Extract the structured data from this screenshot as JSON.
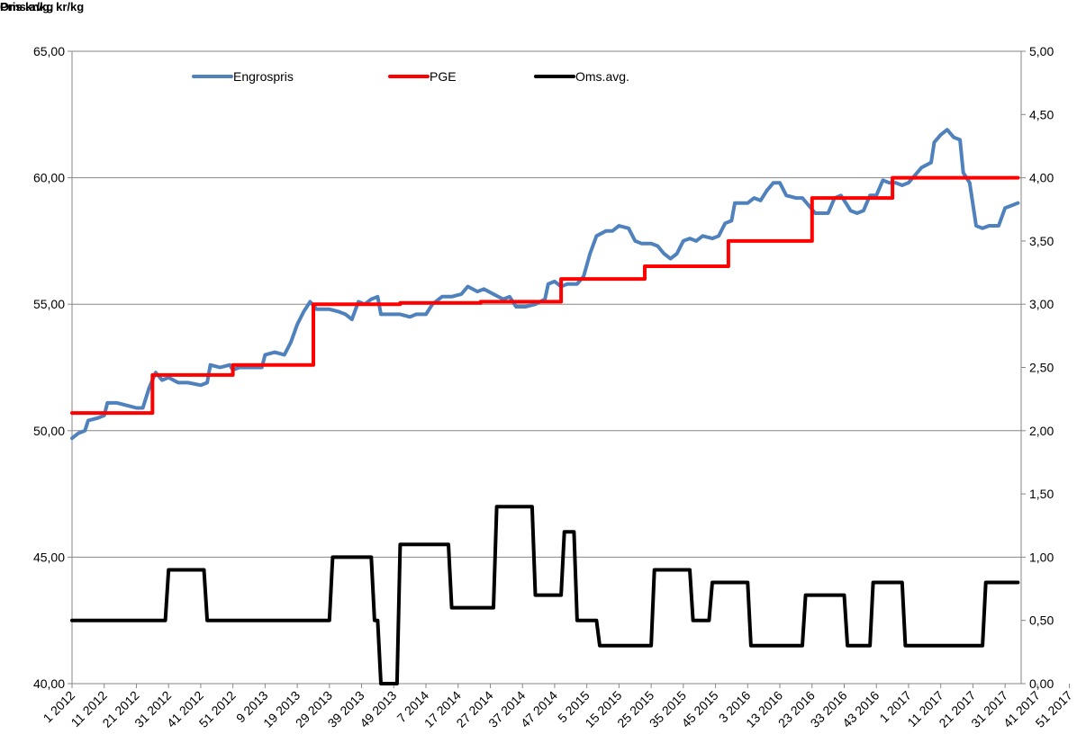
{
  "chart_data": {
    "type": "line",
    "ylabel_left": "Pris kr/kg",
    "ylabel_right": "Oms.avg.  kr/kg",
    "ylim_left": [
      40,
      65
    ],
    "ylim_right": [
      0,
      5
    ],
    "yticks_left": [
      "40,00",
      "45,00",
      "50,00",
      "55,00",
      "60,00",
      "65,00"
    ],
    "yticks_right": [
      "0,00",
      "0,50",
      "1,00",
      "1,50",
      "2,00",
      "2,50",
      "3,00",
      "3,50",
      "4,00",
      "4,50",
      "5,00"
    ],
    "x_tick_labels": [
      "1 2012",
      "11 2012",
      "21 2012",
      "31 2012",
      "41 2012",
      "51 2012",
      "9 2013",
      "19 2013",
      "29 2013",
      "39 2013",
      "49 2013",
      "7 2014",
      "17 2014",
      "27 2014",
      "37 2014",
      "47 2014",
      "5 2015",
      "15 2015",
      "25 2015",
      "35 2015",
      "45 2015",
      "3 2016",
      "13 2016",
      "23 2016",
      "33 2016",
      "43 2016",
      "1 2017",
      "11 2017",
      "21 2017",
      "31 2017",
      "41 2017",
      "51 2017"
    ],
    "grid": true,
    "legend_position": "top",
    "series": [
      {
        "name": "Engrospris",
        "axis": "left",
        "color": "#4F81BD",
        "points": [
          [
            0,
            49.7
          ],
          [
            2,
            49.9
          ],
          [
            4,
            50.0
          ],
          [
            5,
            50.4
          ],
          [
            8,
            50.5
          ],
          [
            10,
            50.6
          ],
          [
            11,
            51.1
          ],
          [
            14,
            51.1
          ],
          [
            17,
            51.0
          ],
          [
            20,
            50.9
          ],
          [
            22,
            50.9
          ],
          [
            24,
            51.7
          ],
          [
            26,
            52.3
          ],
          [
            28,
            52.0
          ],
          [
            30,
            52.1
          ],
          [
            33,
            51.9
          ],
          [
            36,
            51.9
          ],
          [
            40,
            51.8
          ],
          [
            42,
            51.9
          ],
          [
            43,
            52.6
          ],
          [
            46,
            52.5
          ],
          [
            49,
            52.6
          ],
          [
            50,
            52.4
          ],
          [
            52,
            52.5
          ],
          [
            54,
            52.5
          ],
          [
            57,
            52.5
          ],
          [
            59,
            52.5
          ],
          [
            60,
            53.0
          ],
          [
            63,
            53.1
          ],
          [
            66,
            53.0
          ],
          [
            68,
            53.5
          ],
          [
            70,
            54.2
          ],
          [
            72,
            54.7
          ],
          [
            74,
            55.1
          ],
          [
            76,
            54.8
          ],
          [
            80,
            54.8
          ],
          [
            83,
            54.7
          ],
          [
            85,
            54.6
          ],
          [
            87,
            54.4
          ],
          [
            89,
            55.1
          ],
          [
            91,
            55.0
          ],
          [
            93,
            55.2
          ],
          [
            95,
            55.3
          ],
          [
            96,
            54.6
          ],
          [
            99,
            54.6
          ],
          [
            102,
            54.6
          ],
          [
            105,
            54.5
          ],
          [
            107,
            54.6
          ],
          [
            110,
            54.6
          ],
          [
            112,
            55.0
          ],
          [
            115,
            55.3
          ],
          [
            118,
            55.3
          ],
          [
            121,
            55.4
          ],
          [
            123,
            55.7
          ],
          [
            126,
            55.5
          ],
          [
            128,
            55.6
          ],
          [
            131,
            55.4
          ],
          [
            134,
            55.2
          ],
          [
            136,
            55.3
          ],
          [
            138,
            54.9
          ],
          [
            141,
            54.9
          ],
          [
            144,
            55.0
          ],
          [
            147,
            55.2
          ],
          [
            148,
            55.8
          ],
          [
            150,
            55.9
          ],
          [
            152,
            55.7
          ],
          [
            154,
            55.8
          ],
          [
            157,
            55.8
          ],
          [
            159,
            56.1
          ],
          [
            161,
            57.0
          ],
          [
            163,
            57.7
          ],
          [
            166,
            57.9
          ],
          [
            168,
            57.9
          ],
          [
            170,
            58.1
          ],
          [
            173,
            58.0
          ],
          [
            175,
            57.5
          ],
          [
            177,
            57.4
          ],
          [
            180,
            57.4
          ],
          [
            182,
            57.3
          ],
          [
            184,
            57.0
          ],
          [
            186,
            56.8
          ],
          [
            188,
            57.0
          ],
          [
            190,
            57.5
          ],
          [
            192,
            57.6
          ],
          [
            194,
            57.5
          ],
          [
            196,
            57.7
          ],
          [
            199,
            57.6
          ],
          [
            201,
            57.7
          ],
          [
            203,
            58.2
          ],
          [
            205,
            58.3
          ],
          [
            206,
            59.0
          ],
          [
            208,
            59.0
          ],
          [
            210,
            59.0
          ],
          [
            212,
            59.2
          ],
          [
            214,
            59.1
          ],
          [
            216,
            59.5
          ],
          [
            218,
            59.8
          ],
          [
            220,
            59.8
          ],
          [
            222,
            59.3
          ],
          [
            225,
            59.2
          ],
          [
            227,
            59.2
          ],
          [
            229,
            58.9
          ],
          [
            231,
            58.6
          ],
          [
            233,
            58.6
          ],
          [
            235,
            58.6
          ],
          [
            237,
            59.2
          ],
          [
            239,
            59.3
          ],
          [
            241,
            58.9
          ],
          [
            242,
            58.7
          ],
          [
            244,
            58.6
          ],
          [
            246,
            58.7
          ],
          [
            248,
            59.3
          ],
          [
            250,
            59.3
          ],
          [
            252,
            59.9
          ],
          [
            254,
            59.8
          ],
          [
            256,
            59.8
          ],
          [
            258,
            59.7
          ],
          [
            260,
            59.8
          ],
          [
            262,
            60.1
          ],
          [
            264,
            60.4
          ],
          [
            267,
            60.6
          ],
          [
            268,
            61.4
          ],
          [
            270,
            61.7
          ],
          [
            272,
            61.9
          ],
          [
            274,
            61.6
          ],
          [
            276,
            61.5
          ],
          [
            277,
            60.2
          ],
          [
            279,
            59.8
          ],
          [
            281,
            58.1
          ],
          [
            283,
            58.0
          ],
          [
            285,
            58.1
          ],
          [
            288,
            58.1
          ],
          [
            290,
            58.8
          ],
          [
            292,
            58.9
          ],
          [
            294,
            59.0
          ]
        ]
      },
      {
        "name": "PGE",
        "axis": "left",
        "color": "#FF0000",
        "points": [
          [
            0,
            50.7
          ],
          [
            25,
            50.7
          ],
          [
            25,
            52.2
          ],
          [
            50,
            52.2
          ],
          [
            50,
            52.6
          ],
          [
            75,
            52.6
          ],
          [
            75,
            55.0
          ],
          [
            102,
            55.0
          ],
          [
            102,
            55.05
          ],
          [
            127,
            55.05
          ],
          [
            127,
            55.1
          ],
          [
            152,
            55.1
          ],
          [
            152,
            56.0
          ],
          [
            178,
            56.0
          ],
          [
            178,
            56.5
          ],
          [
            204,
            56.5
          ],
          [
            204,
            57.5
          ],
          [
            230,
            57.5
          ],
          [
            230,
            59.2
          ],
          [
            255,
            59.2
          ],
          [
            255,
            60.0
          ],
          [
            294,
            60.0
          ]
        ]
      },
      {
        "name": "Oms.avg.",
        "axis": "right",
        "color": "#000000",
        "points": [
          [
            0,
            0.5
          ],
          [
            29,
            0.5
          ],
          [
            30,
            0.9
          ],
          [
            41,
            0.9
          ],
          [
            42,
            0.5
          ],
          [
            80,
            0.5
          ],
          [
            81,
            1.0
          ],
          [
            93,
            1.0
          ],
          [
            94,
            0.5
          ],
          [
            95,
            0.5
          ],
          [
            96,
            0.0
          ],
          [
            101,
            0.0
          ],
          [
            102,
            1.1
          ],
          [
            117,
            1.1
          ],
          [
            118,
            0.6
          ],
          [
            131,
            0.6
          ],
          [
            132,
            1.4
          ],
          [
            143,
            1.4
          ],
          [
            144,
            0.7
          ],
          [
            152,
            0.7
          ],
          [
            153,
            1.2
          ],
          [
            156,
            1.2
          ],
          [
            157,
            0.5
          ],
          [
            163,
            0.5
          ],
          [
            164,
            0.3
          ],
          [
            180,
            0.3
          ],
          [
            181,
            0.9
          ],
          [
            192,
            0.9
          ],
          [
            193,
            0.5
          ],
          [
            198,
            0.5
          ],
          [
            199,
            0.8
          ],
          [
            210,
            0.8
          ],
          [
            211,
            0.3
          ],
          [
            227,
            0.3
          ],
          [
            228,
            0.7
          ],
          [
            240,
            0.7
          ],
          [
            241,
            0.3
          ],
          [
            248,
            0.3
          ],
          [
            249,
            0.8
          ],
          [
            258,
            0.8
          ],
          [
            259,
            0.3
          ],
          [
            283,
            0.3
          ],
          [
            284,
            0.8
          ],
          [
            294,
            0.8
          ]
        ]
      }
    ]
  }
}
